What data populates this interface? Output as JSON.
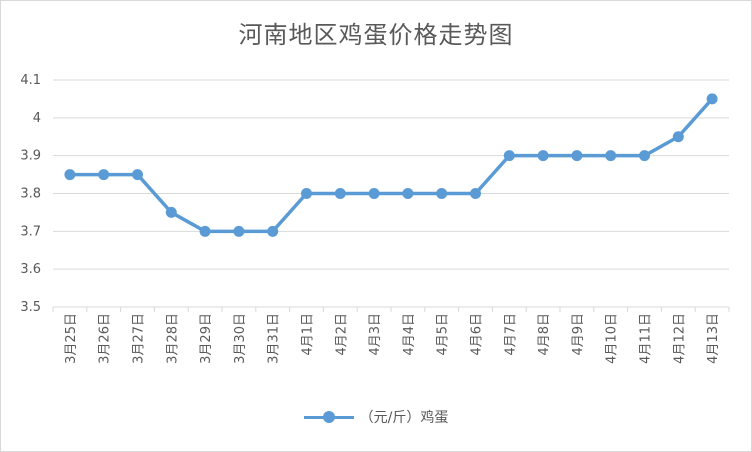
{
  "chart_data": {
    "type": "line",
    "title": "河南地区鸡蛋价格走势图",
    "xlabel": "",
    "ylabel": "",
    "categories": [
      "3月25日",
      "3月26日",
      "3月27日",
      "3月28日",
      "3月29日",
      "3月30日",
      "3月31日",
      "4月1日",
      "4月2日",
      "4月3日",
      "4月4日",
      "4月5日",
      "4月6日",
      "4月7日",
      "4月8日",
      "4月9日",
      "4月10日",
      "4月11日",
      "4月12日",
      "4月13日"
    ],
    "series": [
      {
        "name": "（元/斤）鸡蛋",
        "values": [
          3.85,
          3.85,
          3.85,
          3.75,
          3.7,
          3.7,
          3.7,
          3.8,
          3.8,
          3.8,
          3.8,
          3.8,
          3.8,
          3.9,
          3.9,
          3.9,
          3.9,
          3.9,
          3.95,
          4.05
        ]
      }
    ],
    "ylim": [
      3.5,
      4.1
    ],
    "yticks": [
      "3.5",
      "3.6",
      "3.7",
      "3.8",
      "3.9",
      "4",
      "4.1"
    ],
    "grid": true,
    "legend_position": "bottom",
    "colors": {
      "series": "#5b9bd5",
      "grid": "#d9d9d9",
      "text": "#595959"
    }
  }
}
